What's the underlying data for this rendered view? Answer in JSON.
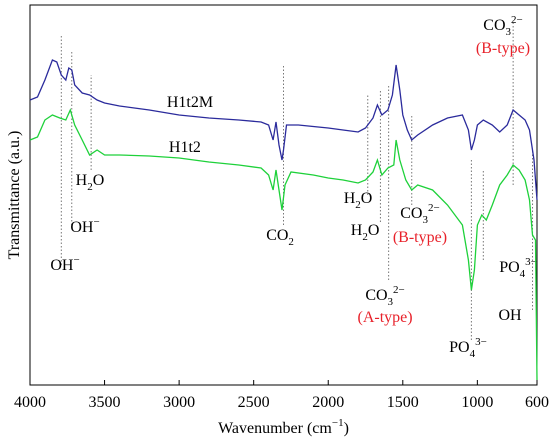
{
  "chart_data": {
    "type": "line",
    "xlabel": [
      {
        "text": "Wavenumber (cm"
      },
      {
        "sup": "−1"
      },
      {
        "text": ")"
      }
    ],
    "ylabel": "Transmittance (a.u.)",
    "xlim": [
      4000,
      600
    ],
    "xticks": [
      4000,
      3500,
      3000,
      2500,
      2000,
      1500,
      1000,
      600
    ],
    "ylim": [
      0,
      380
    ],
    "yticks": [],
    "note_color": "#e8212a",
    "series": [
      {
        "name": "H1t2M",
        "color": "#2b2b9c",
        "label_at": [
          2927,
          278
        ],
        "x": [
          4000,
          3950,
          3900,
          3850,
          3820,
          3790,
          3760,
          3740,
          3720,
          3700,
          3650,
          3600,
          3550,
          3500,
          3400,
          3300,
          3200,
          3000,
          2800,
          2600,
          2450,
          2400,
          2370,
          2350,
          2330,
          2310,
          2300,
          2280,
          2200,
          2000,
          1900,
          1800,
          1750,
          1700,
          1670,
          1640,
          1600,
          1570,
          1545,
          1520,
          1500,
          1470,
          1440,
          1400,
          1300,
          1200,
          1100,
          1060,
          1040,
          1020,
          1000,
          960,
          900,
          850,
          800,
          760,
          720,
          680,
          650,
          620,
          600
        ],
        "values": [
          285,
          288,
          305,
          325,
          323,
          310,
          305,
          317,
          315,
          300,
          292,
          290,
          285,
          282,
          279,
          277,
          275,
          270,
          267,
          265,
          263,
          260,
          245,
          263,
          240,
          225,
          235,
          260,
          260,
          257,
          255,
          253,
          257,
          267,
          280,
          270,
          275,
          290,
          320,
          295,
          270,
          255,
          245,
          250,
          260,
          267,
          270,
          255,
          235,
          245,
          260,
          265,
          260,
          253,
          260,
          275,
          270,
          265,
          255,
          225,
          185
        ]
      },
      {
        "name": "H1t2",
        "color": "#1ed13a",
        "label_at": [
          2961,
          233
        ],
        "x": [
          4000,
          3950,
          3900,
          3850,
          3800,
          3760,
          3730,
          3700,
          3650,
          3600,
          3550,
          3500,
          3400,
          3200,
          3000,
          2800,
          2600,
          2450,
          2400,
          2370,
          2350,
          2330,
          2310,
          2290,
          2250,
          2100,
          2000,
          1900,
          1800,
          1750,
          1700,
          1670,
          1640,
          1600,
          1560,
          1545,
          1520,
          1480,
          1440,
          1400,
          1300,
          1200,
          1100,
          1060,
          1040,
          1020,
          1000,
          970,
          940,
          900,
          850,
          800,
          760,
          720,
          680,
          650,
          630,
          610,
          600
        ],
        "values": [
          245,
          248,
          265,
          270,
          267,
          265,
          275,
          260,
          245,
          230,
          235,
          230,
          230,
          229,
          227,
          223,
          220,
          217,
          210,
          195,
          215,
          195,
          175,
          200,
          213,
          210,
          207,
          205,
          202,
          205,
          213,
          225,
          210,
          217,
          220,
          245,
          225,
          205,
          195,
          200,
          195,
          180,
          160,
          125,
          95,
          115,
          160,
          170,
          165,
          180,
          200,
          210,
          220,
          215,
          205,
          185,
          150,
          145,
          5
        ]
      }
    ],
    "annotations": [
      {
        "x": 3790,
        "span": [
          120,
          350
        ],
        "at": [
          3765,
          115
        ],
        "label": [
          {
            "text": "OH"
          },
          {
            "sup": "−"
          }
        ]
      },
      {
        "x": 3720,
        "span": [
          160,
          335
        ],
        "at": [
          3631,
          153
        ],
        "label": [
          {
            "text": "OH"
          },
          {
            "sup": "−"
          }
        ]
      },
      {
        "x": 3590,
        "span": [
          215,
          310
        ],
        "at": [
          3598,
          200
        ],
        "label": [
          {
            "text": "H"
          },
          {
            "sub": "2"
          },
          {
            "text": "O"
          }
        ]
      },
      {
        "x": 2300,
        "span": [
          160,
          320
        ],
        "at": [
          2323,
          145
        ],
        "label": [
          {
            "text": "CO"
          },
          {
            "sub": "2"
          }
        ]
      },
      {
        "x": 1735,
        "span": [
          190,
          290
        ],
        "at": [
          1800,
          182
        ],
        "label": [
          {
            "text": "H"
          },
          {
            "sub": "2"
          },
          {
            "text": "O"
          }
        ]
      },
      {
        "x": 1650,
        "span": [
          163,
          295
        ],
        "at": [
          1753,
          150
        ],
        "label": [
          {
            "text": "H"
          },
          {
            "sub": "2"
          },
          {
            "text": "O"
          }
        ]
      },
      {
        "x": 1595,
        "span": [
          105,
          300
        ],
        "at": [
          1619,
          85
        ],
        "label": [
          {
            "text": "CO"
          },
          {
            "sub": "3"
          },
          {
            "sup": "2−"
          }
        ],
        "note": "(A-type)",
        "note_at": [
          1619,
          63
        ]
      },
      {
        "x": 1440,
        "span": [
          180,
          270
        ],
        "at": [
          1385,
          167
        ],
        "label": [
          {
            "text": "CO"
          },
          {
            "sub": "3"
          },
          {
            "sup": "2−"
          }
        ],
        "note": "(B-type)",
        "note_at": [
          1385,
          143
        ]
      },
      {
        "x": 1040,
        "span": [
          45,
          225
        ],
        "at": [
          1063,
          33
        ],
        "label": [
          {
            "text": "PO"
          },
          {
            "sub": "4"
          },
          {
            "sup": "3−"
          }
        ]
      },
      {
        "x": 960,
        "span": [
          125,
          215
        ],
        "at": [
          727,
          113
        ],
        "label": [
          {
            "text": "PO"
          },
          {
            "sub": "4"
          },
          {
            "sup": "3−"
          }
        ]
      },
      {
        "x": 630,
        "span": [
          75,
          235
        ],
        "at": [
          781,
          65
        ],
        "label": [
          {
            "text": "OH"
          }
        ]
      },
      {
        "x": 760,
        "span": [
          200,
          365
        ],
        "at": [
          828,
          355
        ],
        "label": [
          {
            "text": "CO"
          },
          {
            "sub": "3"
          },
          {
            "sup": "2−"
          }
        ],
        "note": "(B-type)",
        "note_at": [
          828,
          332
        ]
      }
    ]
  }
}
